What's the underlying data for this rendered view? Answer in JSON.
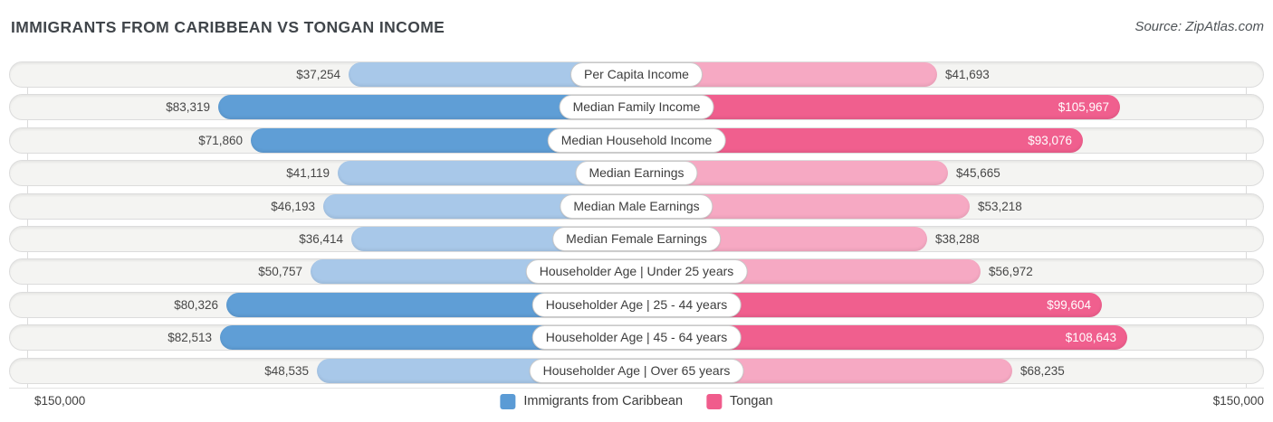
{
  "header": {
    "title": "IMMIGRANTS FROM CARIBBEAN VS TONGAN INCOME",
    "source": "Source: ZipAtlas.com"
  },
  "colors": {
    "caribbean_dark": "#5f9ed6",
    "caribbean_light": "#a8c8e9",
    "tongan_dark": "#f05f8e",
    "tongan_light": "#f6a9c3",
    "track_fill": "#f4f4f2",
    "track_border": "#dcdcdc",
    "value_text": "#474747",
    "value_text_inside": "#ffffff"
  },
  "chart_data": {
    "type": "bar",
    "orientation": "horizontal-diverging",
    "title": "Immigrants from Caribbean vs Tongan Income",
    "axis": {
      "left_end_label": "$150,000",
      "right_end_label": "$150,000",
      "max_value": 150000
    },
    "series": [
      {
        "name": "Immigrants from Caribbean",
        "color": "#5b9bd5"
      },
      {
        "name": "Tongan",
        "color": "#f05c8c"
      }
    ],
    "rows": [
      {
        "label": "Per Capita Income",
        "caribbean": 37254,
        "caribbean_display": "$37,254",
        "tongan": 41693,
        "tongan_display": "$41,693"
      },
      {
        "label": "Median Family Income",
        "caribbean": 83319,
        "caribbean_display": "$83,319",
        "tongan": 105967,
        "tongan_display": "$105,967"
      },
      {
        "label": "Median Household Income",
        "caribbean": 71860,
        "caribbean_display": "$71,860",
        "tongan": 93076,
        "tongan_display": "$93,076"
      },
      {
        "label": "Median Earnings",
        "caribbean": 41119,
        "caribbean_display": "$41,119",
        "tongan": 45665,
        "tongan_display": "$45,665"
      },
      {
        "label": "Median Male Earnings",
        "caribbean": 46193,
        "caribbean_display": "$46,193",
        "tongan": 53218,
        "tongan_display": "$53,218"
      },
      {
        "label": "Median Female Earnings",
        "caribbean": 36414,
        "caribbean_display": "$36,414",
        "tongan": 38288,
        "tongan_display": "$38,288"
      },
      {
        "label": "Householder Age | Under 25 years",
        "caribbean": 50757,
        "caribbean_display": "$50,757",
        "tongan": 56972,
        "tongan_display": "$56,972"
      },
      {
        "label": "Householder Age | 25 - 44 years",
        "caribbean": 80326,
        "caribbean_display": "$80,326",
        "tongan": 99604,
        "tongan_display": "$99,604"
      },
      {
        "label": "Householder Age | 45 - 64 years",
        "caribbean": 82513,
        "caribbean_display": "$82,513",
        "tongan": 108643,
        "tongan_display": "$108,643"
      },
      {
        "label": "Householder Age | Over 65 years",
        "caribbean": 48535,
        "caribbean_display": "$48,535",
        "tongan": 68235,
        "tongan_display": "$68,235"
      }
    ]
  },
  "legend": {
    "items": [
      {
        "label": "Immigrants from Caribbean",
        "color": "#5b9bd5"
      },
      {
        "label": "Tongan",
        "color": "#f05c8c"
      }
    ]
  }
}
